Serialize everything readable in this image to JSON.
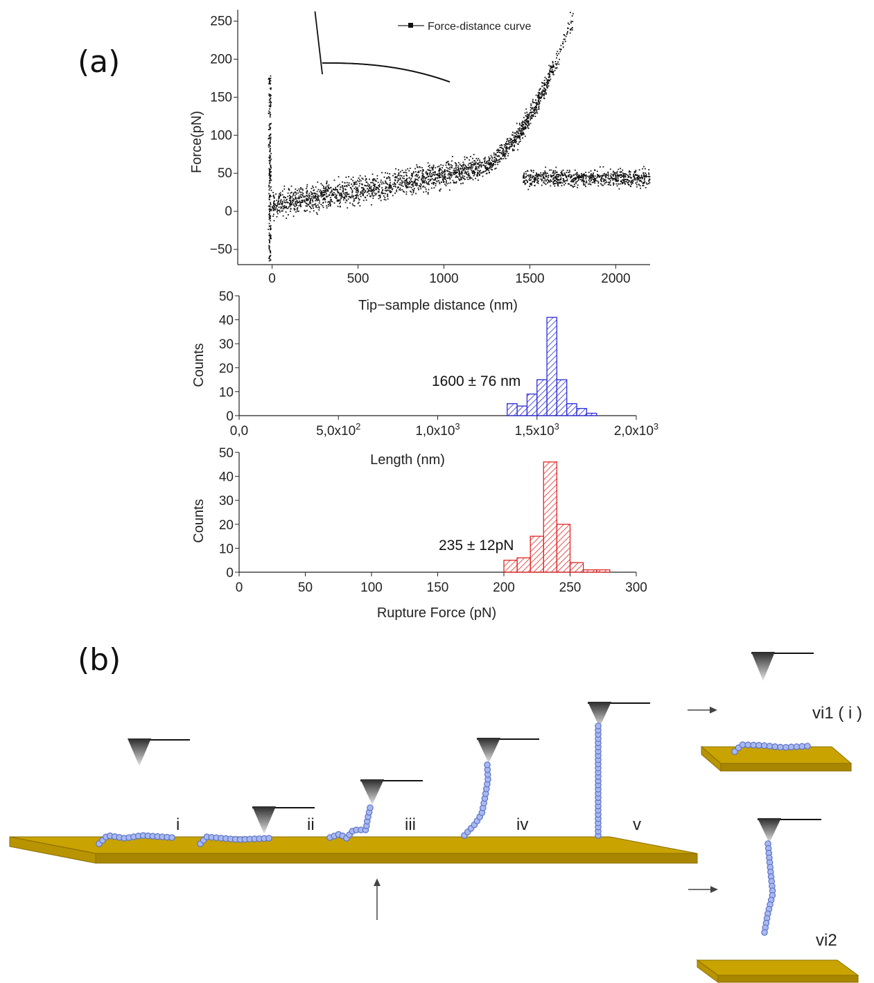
{
  "figure": {
    "label_a": "(a)",
    "label_b": "(b)"
  },
  "chart_data": [
    {
      "type": "scatter",
      "title": "",
      "xlabel": "Tip−sample distance (nm)",
      "ylabel": "Force(pN)",
      "xlim": [
        -200,
        2200
      ],
      "ylim": [
        -70,
        265
      ],
      "xticks": [
        0,
        500,
        1000,
        1500,
        2000
      ],
      "yticks": [
        -50,
        0,
        50,
        100,
        150,
        200,
        250
      ],
      "legend": {
        "placement": "top",
        "series": [
          "Force-distance curve"
        ]
      },
      "series": [
        {
          "name": "Force-distance curve",
          "description_points": [
            {
              "x": 270,
              "y": 265
            },
            {
              "x": 290,
              "y": 185
            },
            {
              "x": 300,
              "y": 195
            },
            {
              "x": 600,
              "y": 192
            },
            {
              "x": 900,
              "y": 184
            },
            {
              "x": 1030,
              "y": 170
            },
            {
              "x": 1040,
              "y": 187
            },
            {
              "x": 1430,
              "y": 188
            }
          ]
        },
        {
          "name": "",
          "description_points": [
            {
              "x": -10,
              "y": 180
            },
            {
              "x": 0,
              "y": 10
            },
            {
              "x": 300,
              "y": 8
            },
            {
              "x": 800,
              "y": 30
            },
            {
              "x": 1200,
              "y": 60
            },
            {
              "x": 1400,
              "y": 100
            },
            {
              "x": 1600,
              "y": 160
            },
            {
              "x": 1750,
              "y": 195
            },
            {
              "x": 1450,
              "y": 50
            },
            {
              "x": 2200,
              "y": 45
            }
          ]
        }
      ]
    },
    {
      "type": "bar",
      "xlabel": "Length (nm)",
      "ylabel": "Counts",
      "xlim": [
        0,
        2000
      ],
      "ylim": [
        0,
        50
      ],
      "xtick_labels": [
        "0,0",
        "5,0x10",
        "1,0x10",
        "1,5x10",
        "2,0x10"
      ],
      "xtick_values": [
        0,
        500,
        1000,
        1500,
        2000
      ],
      "xtick_exponents": [
        "",
        "2",
        "3",
        "3",
        "3"
      ],
      "yticks": [
        0,
        10,
        20,
        30,
        40,
        50
      ],
      "annotation": "1600 ± 76 nm",
      "color": "#2b2bd6",
      "bin_width": 50,
      "bins": [
        {
          "x": 1350,
          "count": 5
        },
        {
          "x": 1400,
          "count": 4
        },
        {
          "x": 1450,
          "count": 9
        },
        {
          "x": 1500,
          "count": 15
        },
        {
          "x": 1550,
          "count": 41
        },
        {
          "x": 1600,
          "count": 15
        },
        {
          "x": 1650,
          "count": 5
        },
        {
          "x": 1700,
          "count": 3
        },
        {
          "x": 1750,
          "count": 1
        }
      ]
    },
    {
      "type": "bar",
      "xlabel": "Rupture Force (pN)",
      "ylabel": "Counts",
      "xlim": [
        0,
        300
      ],
      "ylim": [
        0,
        50
      ],
      "xticks": [
        0,
        50,
        100,
        150,
        200,
        250,
        300
      ],
      "yticks": [
        0,
        10,
        20,
        30,
        40,
        50
      ],
      "annotation": "235 ± 12pN",
      "color": "#e02424",
      "bin_width": 10,
      "bins": [
        {
          "x": 200,
          "count": 5
        },
        {
          "x": 210,
          "count": 6
        },
        {
          "x": 220,
          "count": 15
        },
        {
          "x": 230,
          "count": 46
        },
        {
          "x": 240,
          "count": 20
        },
        {
          "x": 250,
          "count": 4
        },
        {
          "x": 260,
          "count": 1
        },
        {
          "x": 270,
          "count": 1
        }
      ]
    }
  ],
  "schematic": {
    "steps": [
      "i",
      "ii",
      "iii",
      "iv",
      "v"
    ],
    "outcome_1": "vi1 ( i )",
    "outcome_2": "vi2",
    "colors": {
      "substrate": "#c9a300",
      "substrate_dark": "#8a6d00",
      "bead": "#a9b9f0",
      "bead_edge": "#5a72c8"
    }
  }
}
